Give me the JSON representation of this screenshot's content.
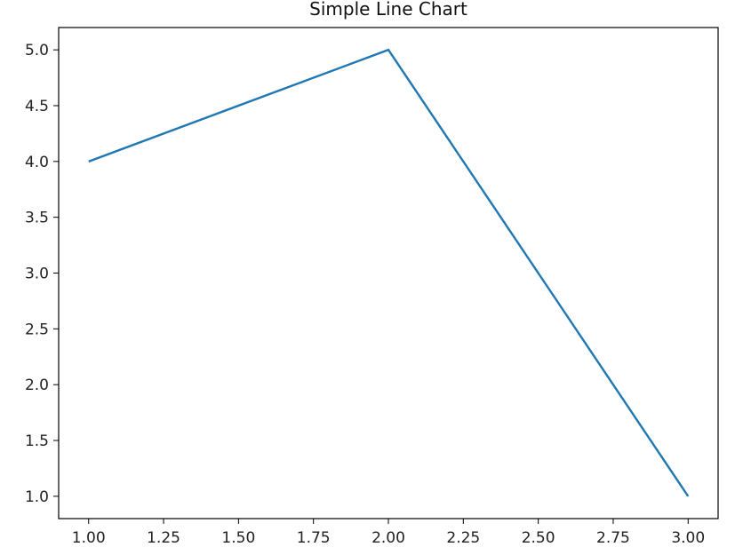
{
  "chart_data": {
    "type": "line",
    "title": "Simple Line Chart",
    "xlabel": "",
    "ylabel": "",
    "x": [
      1.0,
      2.0,
      3.0
    ],
    "series": [
      {
        "values": [
          4.0,
          5.0,
          1.0
        ],
        "color": "#1f77b4"
      }
    ],
    "xlim": [
      0.9,
      3.1
    ],
    "ylim": [
      0.8,
      5.2
    ],
    "xticks": [
      1.0,
      1.25,
      1.5,
      1.75,
      2.0,
      2.25,
      2.5,
      2.75,
      3.0
    ],
    "xtick_labels": [
      "1.00",
      "1.25",
      "1.50",
      "1.75",
      "2.00",
      "2.25",
      "2.50",
      "2.75",
      "3.00"
    ],
    "yticks": [
      1.0,
      1.5,
      2.0,
      2.5,
      3.0,
      3.5,
      4.0,
      4.5,
      5.0
    ],
    "ytick_labels": [
      "1.0",
      "1.5",
      "2.0",
      "2.5",
      "3.0",
      "3.5",
      "4.0",
      "4.5",
      "5.0"
    ],
    "grid": false,
    "legend": "none"
  }
}
